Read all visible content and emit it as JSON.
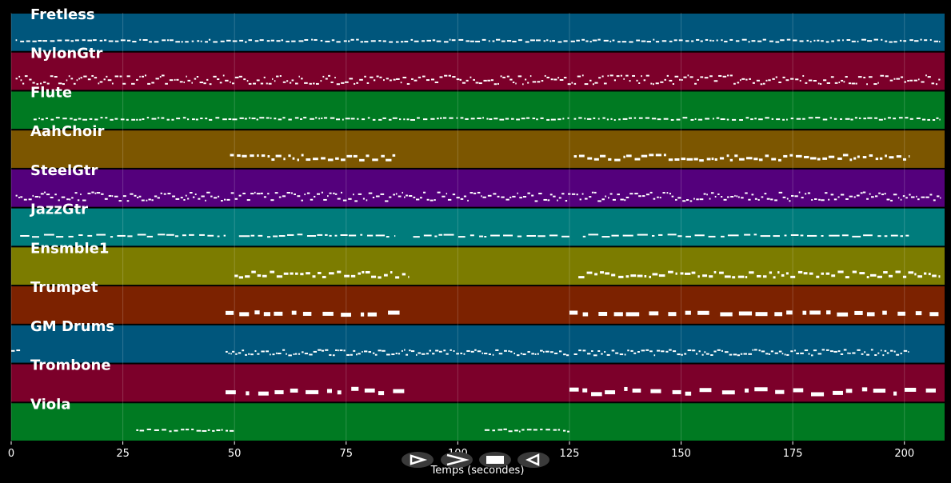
{
  "chart_data": {
    "type": "piano-roll",
    "xlabel": "Temps (secondes)",
    "xlim": [
      0,
      209
    ],
    "xticks": [
      0,
      25,
      50,
      75,
      100,
      125,
      150,
      175,
      200
    ],
    "grid": true,
    "tracks": [
      {
        "name": "Fretless",
        "color": "#00567c",
        "segments": [
          [
            1,
            208
          ]
        ],
        "density": "sparse",
        "lines": 1
      },
      {
        "name": "NylonGtr",
        "color": "#7c002a",
        "segments": [
          [
            1,
            208
          ]
        ],
        "density": "dense",
        "lines": 3
      },
      {
        "name": "Flute",
        "color": "#007a22",
        "segments": [
          [
            5,
            125
          ],
          [
            126,
            208
          ]
        ],
        "density": "sparse",
        "lines": 1
      },
      {
        "name": "AahChoir",
        "color": "#7c5600",
        "segments": [
          [
            49,
            86
          ],
          [
            126,
            201
          ]
        ],
        "density": "medium",
        "lines": 2
      },
      {
        "name": "SteelGtr",
        "color": "#54007c",
        "segments": [
          [
            1,
            208
          ]
        ],
        "density": "dense",
        "lines": 3
      },
      {
        "name": "JazzGtr",
        "color": "#007c7c",
        "segments": [
          [
            2,
            48
          ],
          [
            51,
            86
          ],
          [
            90,
            125
          ],
          [
            128,
            201
          ]
        ],
        "density": "phrase",
        "lines": 1
      },
      {
        "name": "Ensmble1",
        "color": "#7c7c00",
        "segments": [
          [
            50,
            89
          ],
          [
            127,
            208
          ]
        ],
        "density": "medium",
        "lines": 2
      },
      {
        "name": "Trumpet",
        "color": "#7c2200",
        "segments": [
          [
            48,
            88
          ],
          [
            125,
            208
          ]
        ],
        "density": "block",
        "lines": 1
      },
      {
        "name": "GM Drums",
        "color": "#00567c",
        "segments": [
          [
            0,
            2
          ],
          [
            48,
            125
          ],
          [
            126,
            201
          ]
        ],
        "density": "dense",
        "lines": 2
      },
      {
        "name": "Trombone",
        "color": "#7c002a",
        "segments": [
          [
            48,
            88
          ],
          [
            125,
            208
          ]
        ],
        "density": "block",
        "lines": 2
      },
      {
        "name": "Viola",
        "color": "#007a22",
        "segments": [
          [
            28,
            50
          ],
          [
            106,
            125
          ]
        ],
        "density": "sparse",
        "lines": 1
      }
    ]
  },
  "controls": [
    {
      "name": "play-button",
      "glyph": "play"
    },
    {
      "name": "fast-forward-button",
      "glyph": "ff"
    },
    {
      "name": "stop-button",
      "glyph": "stop"
    },
    {
      "name": "rewind-button",
      "glyph": "rewind"
    }
  ]
}
